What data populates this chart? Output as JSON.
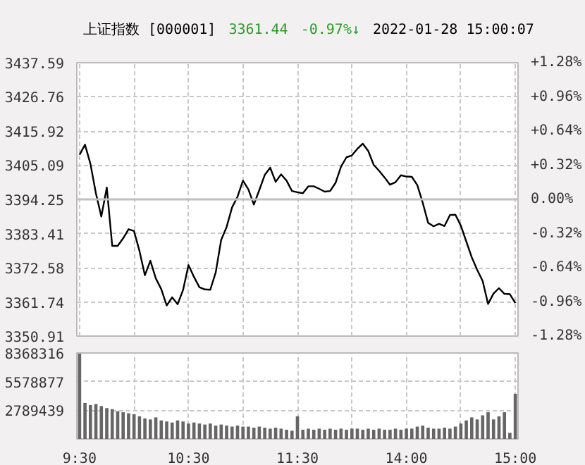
{
  "chart_data": [
    {
      "type": "line",
      "title": "上证指数 [000001]",
      "annotations": [
        "3361.44",
        "-0.97%↓",
        "2022-01-28 15:00:07"
      ],
      "categories": [
        null,
        null,
        null,
        null,
        null,
        null,
        null,
        null,
        null,
        null,
        null,
        null,
        null,
        null,
        null,
        null,
        null,
        null,
        null,
        null,
        null,
        null,
        null,
        null,
        null,
        null,
        null,
        null,
        null,
        null,
        null,
        null,
        null,
        null,
        null,
        null,
        null,
        null,
        null,
        null,
        null,
        null,
        null,
        null,
        null,
        null,
        null,
        null,
        null,
        null,
        null,
        null,
        null,
        null,
        null,
        null,
        null,
        null,
        null,
        null,
        null,
        null,
        null,
        null,
        null,
        null,
        null,
        null,
        null,
        null,
        null,
        null,
        null,
        null,
        null,
        null,
        null,
        null,
        null,
        null,
        null
      ],
      "series": [
        {
          "color": "#000000",
          "values": [
            3408.4,
            3411.6,
            3405.5,
            3396.2,
            3388.8,
            3398.0,
            3379.5,
            3379.5,
            3381.9,
            3384.8,
            3384.2,
            3377.9,
            3370.2,
            3374.8,
            3369.2,
            3365.8,
            3360.6,
            3363.2,
            3361.0,
            3365.5,
            3373.4,
            3369.7,
            3366.4,
            3365.7,
            3365.6,
            3371.1,
            3381.4,
            3385.5,
            3391.7,
            3395.1,
            3400.2,
            3397.4,
            3392.6,
            3397.2,
            3402.0,
            3404.3,
            3399.8,
            3402.2,
            3400.2,
            3396.9,
            3396.5,
            3396.2,
            3398.4,
            3398.4,
            3397.6,
            3396.7,
            3396.9,
            3399.5,
            3404.6,
            3407.6,
            3408.2,
            3410.3,
            3411.9,
            3409.6,
            3405.2,
            3403.3,
            3401.2,
            3398.9,
            3399.7,
            3401.9,
            3401.5,
            3401.4,
            3398.8,
            3393.2,
            3386.8,
            3385.7,
            3386.5,
            3385.8,
            3389.3,
            3389.4,
            3385.9,
            3380.9,
            3375.9,
            3371.9,
            3368.4,
            3361.1,
            3364.4,
            3366.1,
            3364.3,
            3364.2,
            3361.4
          ]
        }
      ],
      "ylim": [
        3350.91,
        3437.59
      ],
      "yticks": [
        3350.91,
        3361.74,
        3372.58,
        3383.41,
        3394.25,
        3405.09,
        3415.92,
        3426.76,
        3437.59
      ],
      "y2lim": [
        -1.28,
        1.28
      ],
      "y2ticks": [
        {
          "value": -1.28,
          "label": "-1.28%"
        },
        {
          "value": -0.96,
          "label": "-0.96%"
        },
        {
          "value": -0.64,
          "label": "-0.64%"
        },
        {
          "value": -0.32,
          "label": "-0.32%"
        },
        {
          "value": 0,
          "label": "0.00%"
        },
        {
          "value": 0.32,
          "label": "+0.32%"
        },
        {
          "value": 0.64,
          "label": "+0.64%"
        },
        {
          "value": 0.96,
          "label": "+0.96%"
        },
        {
          "value": 1.28,
          "label": "+1.28%"
        }
      ],
      "ref_lines": [
        {
          "axis": "y",
          "value": 3394.25,
          "label": null,
          "color": "#c0c0c0",
          "line_style": "solid"
        }
      ],
      "grid": true,
      "tick_labels": "y",
      "marker": "none",
      "line_style": "solid"
    },
    {
      "type": "bar",
      "categories": [
        "9:30",
        null,
        null,
        null,
        null,
        null,
        null,
        null,
        null,
        null,
        null,
        null,
        null,
        null,
        null,
        null,
        null,
        null,
        null,
        null,
        "10:30",
        null,
        null,
        null,
        null,
        null,
        null,
        null,
        null,
        null,
        null,
        null,
        null,
        null,
        null,
        null,
        null,
        null,
        null,
        null,
        "11:30",
        null,
        null,
        null,
        null,
        null,
        null,
        null,
        null,
        null,
        null,
        null,
        null,
        null,
        null,
        null,
        null,
        null,
        null,
        null,
        "14:00",
        null,
        null,
        null,
        null,
        null,
        null,
        null,
        null,
        null,
        null,
        null,
        null,
        null,
        null,
        null,
        null,
        null,
        null,
        null,
        "15:00"
      ],
      "series": [
        {
          "color": "#666666",
          "values": [
            8300000,
            3500000,
            3300000,
            3400000,
            3200000,
            3000000,
            2900000,
            2700000,
            2600000,
            2500000,
            2400000,
            2200000,
            2000000,
            1900000,
            2100000,
            1800000,
            1700000,
            1600000,
            1800000,
            1700000,
            1500000,
            1600000,
            1500000,
            1400000,
            1500000,
            1300000,
            1400000,
            1300000,
            1200000,
            1300000,
            1200000,
            1200000,
            1100000,
            1200000,
            1100000,
            1000000,
            1100000,
            1000000,
            900000,
            800000,
            2200000,
            900000,
            1000000,
            900000,
            1000000,
            900000,
            1000000,
            900000,
            1000000,
            900000,
            1000000,
            1000000,
            900000,
            1000000,
            900000,
            1000000,
            900000,
            900000,
            1000000,
            900000,
            1000000,
            1000000,
            1200000,
            1300000,
            1100000,
            1000000,
            1000000,
            1100000,
            1000000,
            1200000,
            1500000,
            1800000,
            2100000,
            1900000,
            2300000,
            2600000,
            1900000,
            2200000,
            2600000,
            600000,
            4400000
          ]
        }
      ],
      "ylim": [
        0,
        8368316
      ],
      "yticks": [
        {
          "value": 0,
          "label": null
        },
        2789439,
        5578877,
        8368316
      ],
      "grid": true
    }
  ]
}
